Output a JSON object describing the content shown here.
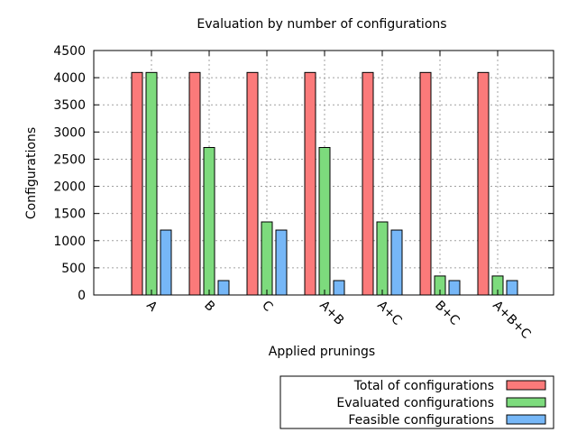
{
  "chart_data": {
    "type": "bar",
    "title": "Evaluation by number of configurations",
    "xlabel": "Applied prunings",
    "ylabel": "Configurations",
    "ylim": [
      0,
      4500
    ],
    "yticks": [
      0,
      500,
      1000,
      1500,
      2000,
      2500,
      3000,
      3500,
      4000,
      4500
    ],
    "grid": true,
    "legend_position": "bottom-right, outside",
    "categories": [
      "A",
      "B",
      "C",
      "A+B",
      "A+C",
      "B+C",
      "A+B+C"
    ],
    "series": [
      {
        "name": "Total of configurations",
        "color": "#fb7a7a",
        "values": [
          4096,
          4096,
          4096,
          4096,
          4096,
          4096,
          4096
        ]
      },
      {
        "name": "Evaluated configurations",
        "color": "#7ddb7d",
        "values": [
          4096,
          2715,
          1345,
          2715,
          1345,
          350,
          350
        ]
      },
      {
        "name": "Feasible configurations",
        "color": "#76b7f7",
        "values": [
          1195,
          265,
          1195,
          265,
          1195,
          265,
          265
        ]
      }
    ]
  }
}
